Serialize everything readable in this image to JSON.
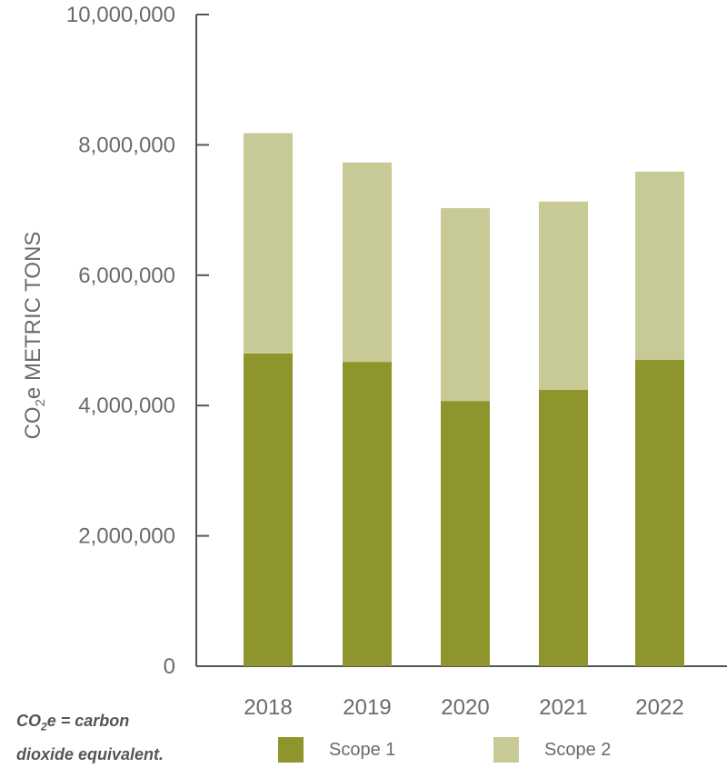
{
  "chart_data": {
    "type": "bar",
    "stacked": true,
    "categories": [
      "2018",
      "2019",
      "2020",
      "2021",
      "2022"
    ],
    "series": [
      {
        "name": "Scope 1",
        "color": "#8f952d",
        "values": [
          4800000,
          4670000,
          4070000,
          4240000,
          4700000
        ]
      },
      {
        "name": "Scope 2",
        "color": "#c8ca96",
        "values": [
          3380000,
          3060000,
          2960000,
          2890000,
          2890000
        ]
      }
    ],
    "ylabel_prefix": "CO",
    "ylabel_sub": "2",
    "ylabel_suffix": "e METRIC TONS",
    "yticks": [
      "0",
      "2,000,000",
      "4,000,000",
      "6,000,000",
      "8,000,000",
      "10,000,000"
    ],
    "ylim": [
      0,
      10000000
    ],
    "grid": false,
    "legend_position": "bottom"
  },
  "footnote": {
    "prefix": "CO",
    "sub": "2",
    "line1_rest": "e = carbon",
    "line2": "dioxide equivalent."
  },
  "legend": {
    "scope1_label": "Scope 1",
    "scope2_label": "Scope 2"
  }
}
